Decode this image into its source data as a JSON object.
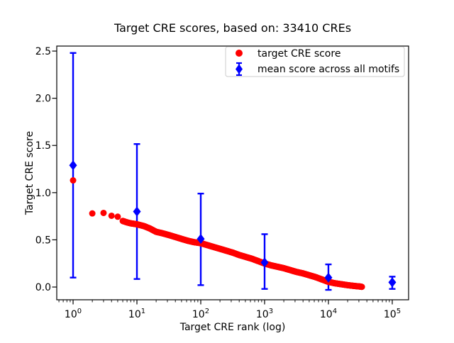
{
  "chart_data": {
    "type": "scatter",
    "title": "Target CRE scores, based on: 33410 CREs",
    "xlabel": "Target CRE rank (log)",
    "ylabel": "Target CRE score",
    "xscale": "log",
    "xlim_log10": [
      -0.256,
      5.256
    ],
    "ylim": [
      -0.135,
      2.553
    ],
    "x_tick_exponents": [
      0,
      1,
      2,
      3,
      4,
      5
    ],
    "x_tick_base": "10",
    "y_ticks": [
      0.0,
      0.5,
      1.0,
      1.5,
      2.0,
      2.5
    ],
    "grid": false,
    "legend_position": "upper right",
    "background_color": "#ffffff",
    "series": [
      {
        "name": "target CRE score",
        "type": "dense-scatter",
        "color": "#ff0000",
        "marker": "circle",
        "isolated_points": [
          [
            1,
            1.13
          ],
          [
            2,
            0.78
          ],
          [
            3,
            0.785
          ],
          [
            4,
            0.755
          ],
          [
            5,
            0.745
          ]
        ],
        "curve_control_points": [
          [
            6,
            0.7
          ],
          [
            7,
            0.685
          ],
          [
            8,
            0.675
          ],
          [
            10,
            0.665
          ],
          [
            13,
            0.645
          ],
          [
            16,
            0.62
          ],
          [
            20,
            0.585
          ],
          [
            25,
            0.57
          ],
          [
            32,
            0.55
          ],
          [
            40,
            0.53
          ],
          [
            50,
            0.51
          ],
          [
            63,
            0.49
          ],
          [
            79,
            0.475
          ],
          [
            100,
            0.465
          ],
          [
            126,
            0.445
          ],
          [
            158,
            0.425
          ],
          [
            200,
            0.405
          ],
          [
            251,
            0.385
          ],
          [
            316,
            0.365
          ],
          [
            398,
            0.34
          ],
          [
            501,
            0.32
          ],
          [
            631,
            0.3
          ],
          [
            794,
            0.275
          ],
          [
            1000,
            0.25
          ],
          [
            1259,
            0.23
          ],
          [
            1585,
            0.215
          ],
          [
            1995,
            0.2
          ],
          [
            2512,
            0.18
          ],
          [
            3162,
            0.16
          ],
          [
            3981,
            0.145
          ],
          [
            5012,
            0.125
          ],
          [
            6310,
            0.105
          ],
          [
            7943,
            0.08
          ],
          [
            10000,
            0.055
          ],
          [
            12589,
            0.04
          ],
          [
            15849,
            0.03
          ],
          [
            19953,
            0.02
          ],
          [
            25119,
            0.012
          ],
          [
            31623,
            0.005
          ],
          [
            33410,
            0.002
          ]
        ]
      },
      {
        "name": "mean score across all motifs",
        "type": "errorbar",
        "color": "#0000ff",
        "marker": "diamond",
        "points": [
          {
            "rank": 1,
            "mean": 1.29,
            "lo": 0.1,
            "hi": 2.48
          },
          {
            "rank": 10,
            "mean": 0.8,
            "lo": 0.085,
            "hi": 1.515
          },
          {
            "rank": 100,
            "mean": 0.51,
            "lo": 0.02,
            "hi": 0.99
          },
          {
            "rank": 1000,
            "mean": 0.26,
            "lo": -0.02,
            "hi": 0.56
          },
          {
            "rank": 10000,
            "mean": 0.1,
            "lo": -0.03,
            "hi": 0.24
          },
          {
            "rank": 100000,
            "mean": 0.05,
            "lo": -0.02,
            "hi": 0.11
          }
        ]
      }
    ],
    "legend": [
      "target CRE score",
      "mean score across all motifs"
    ]
  }
}
